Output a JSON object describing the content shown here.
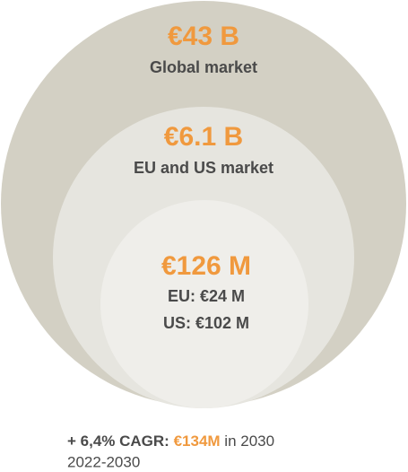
{
  "circles": [
    {
      "value": "€43 B",
      "label": "Global market"
    },
    {
      "value": "€6.1 B",
      "label": "EU and US market"
    },
    {
      "value": "€126 M",
      "details": [
        "EU: €24 M",
        "US: €102 M"
      ]
    }
  ],
  "footer": {
    "growth": "+ 6,4% CAGR:",
    "target": "€134M",
    "suffix": "in 2030",
    "period": "2022-2030"
  }
}
